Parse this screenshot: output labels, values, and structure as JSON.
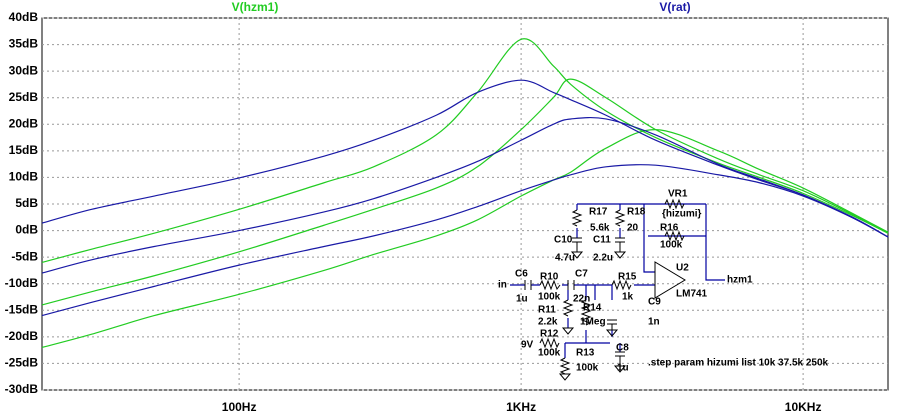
{
  "chart_data": {
    "type": "line",
    "xscale": "log",
    "grid": true,
    "x": [
      20,
      30,
      50,
      100,
      200,
      300,
      500,
      700,
      1000,
      1300,
      1500,
      2000,
      3000,
      5000,
      7000,
      10000,
      15000,
      20000
    ],
    "xlim": [
      20,
      20000
    ],
    "xticks": [
      {
        "value": 100,
        "label": "100Hz"
      },
      {
        "value": 1000,
        "label": "1KHz"
      },
      {
        "value": 10000,
        "label": "10KHz"
      }
    ],
    "ylim": [
      -30,
      40
    ],
    "yticks": [
      {
        "value": 40,
        "label": "40dB"
      },
      {
        "value": 35,
        "label": "35dB"
      },
      {
        "value": 30,
        "label": "30dB"
      },
      {
        "value": 25,
        "label": "25dB"
      },
      {
        "value": 20,
        "label": "20dB"
      },
      {
        "value": 15,
        "label": "15dB"
      },
      {
        "value": 10,
        "label": "10dB"
      },
      {
        "value": 5,
        "label": "5dB"
      },
      {
        "value": 0,
        "label": "0dB"
      },
      {
        "value": -5,
        "label": "-5dB"
      },
      {
        "value": -10,
        "label": "-10dB"
      },
      {
        "value": -15,
        "label": "-15dB"
      },
      {
        "value": -20,
        "label": "-20dB"
      },
      {
        "value": -25,
        "label": "-25dB"
      },
      {
        "value": -30,
        "label": "-30dB"
      }
    ],
    "series": [
      {
        "name": "V(hzm1)",
        "color": "#22cc22",
        "values": [
          [
            -6,
            -3.5,
            -0.5,
            4,
            9,
            12,
            18,
            26,
            36,
            31,
            27.5,
            22.5,
            17.5,
            12.7,
            10,
            7,
            2.8,
            -0.5
          ],
          [
            -14,
            -11.5,
            -8.5,
            -4,
            1,
            4,
            8,
            12,
            19,
            25,
            28.5,
            25,
            19,
            13.5,
            10.5,
            7.5,
            3,
            -0.5
          ],
          [
            -22,
            -19.5,
            -16,
            -12,
            -7.5,
            -4.5,
            -1,
            2,
            6.5,
            9.5,
            11,
            15.5,
            19,
            15,
            11.5,
            8,
            3.2,
            -0.3
          ]
        ]
      },
      {
        "name": "V(rat)",
        "color": "#1a1aa6",
        "values": [
          [
            1.4,
            4,
            6.5,
            9.9,
            14,
            17,
            21.7,
            26,
            28.3,
            26,
            24.6,
            21.7,
            17,
            12.3,
            9.5,
            6.7,
            2.4,
            -1.2
          ],
          [
            -8,
            -5.5,
            -3,
            0,
            3.5,
            6,
            10,
            13,
            17,
            20,
            21,
            21,
            18,
            12.5,
            9.7,
            6.7,
            2.5,
            -1.2
          ],
          [
            -16,
            -13.5,
            -10.5,
            -6.5,
            -3,
            -1,
            2,
            4.5,
            7.5,
            9.5,
            10.5,
            12,
            12.3,
            10.5,
            9,
            6.5,
            2.4,
            -1.2
          ]
        ]
      }
    ]
  },
  "schematic": {
    "labels": [
      "R17",
      "5.6k",
      "R18",
      "20",
      "VR1",
      "{hizumi}",
      "R16",
      "100k",
      "C10",
      "4.7u",
      "C11",
      "2.2u",
      "U2",
      "in",
      "C6",
      "1u",
      "R10",
      "100k",
      "C7",
      "22n",
      "R15",
      "1k",
      "hzm1",
      "LM741",
      "C9",
      "1n",
      "R11",
      "2.2k",
      "R14",
      "1Meg",
      "9V",
      "R12",
      "100k",
      "C8",
      "R13",
      "100k",
      "1u",
      ".step param hizumi list 10k 37.5k 250k"
    ]
  }
}
